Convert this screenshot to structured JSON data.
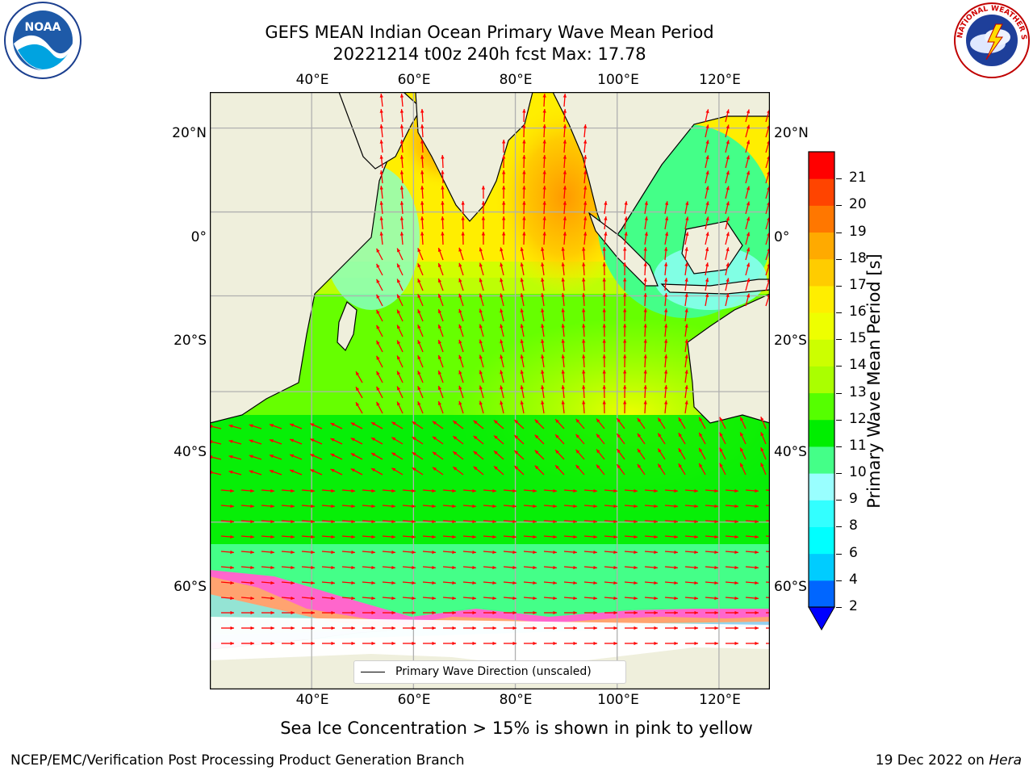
{
  "header": {
    "title_line1": "GEFS MEAN Indian Ocean Primary Wave Mean Period",
    "title_line2": "20221214 t00z 240h fcst   Max: 17.78"
  },
  "logos": {
    "left": {
      "name": "noaa-logo",
      "text": "NOAA"
    },
    "right": {
      "name": "nws-logo",
      "text": "NATIONAL WEATHER SERVICE"
    }
  },
  "map": {
    "lon_ticks_top": [
      "40°E",
      "60°E",
      "80°E",
      "100°E",
      "120°E"
    ],
    "lon_ticks_bottom": [
      "40°E",
      "60°E",
      "80°E",
      "100°E",
      "120°E"
    ],
    "lat_ticks_left": [
      "20°N",
      "0°",
      "20°S",
      "40°S",
      "60°S"
    ],
    "lat_ticks_right": [
      "20°N",
      "0°",
      "20°S",
      "40°S",
      "60°S"
    ],
    "lon_values": [
      40,
      60,
      80,
      100,
      120
    ],
    "lat_values": [
      20,
      0,
      -20,
      -40,
      -60
    ],
    "extent": {
      "lon_min": 20,
      "lon_max": 130,
      "lat_min": -75,
      "lat_max": 28
    },
    "legend_label": "Primary Wave Direction (unscaled)",
    "arrow_color": "#ff0000",
    "land_color": "#efefdc",
    "ice_colors": [
      "#ff33cc",
      "#ff66aa",
      "#ffaa66",
      "#ffff66"
    ]
  },
  "colorbar": {
    "label": "Primary Wave Mean Period [s]",
    "ticks": [
      "2",
      "4",
      "6",
      "8",
      "9",
      "10",
      "11",
      "12",
      "13",
      "14",
      "15",
      "16",
      "17",
      "18",
      "19",
      "20",
      "21"
    ],
    "colors": [
      "#0066ff",
      "#00ccff",
      "#00ffff",
      "#33ffff",
      "#99ffff",
      "#44ff88",
      "#00ee00",
      "#55ff00",
      "#aaff00",
      "#ccff00",
      "#eeff00",
      "#ffee00",
      "#ffcc00",
      "#ffaa00",
      "#ff7700",
      "#ff4400",
      "#ff0000"
    ],
    "extend_color": "#0000ff"
  },
  "caption": "Sea Ice Concentration > 15% is shown in pink to yellow",
  "footer": {
    "left": "NCEP/EMC/Verification Post Processing Product Generation Branch",
    "right_prefix": "19 Dec 2022 on ",
    "right_host": "Hera"
  }
}
